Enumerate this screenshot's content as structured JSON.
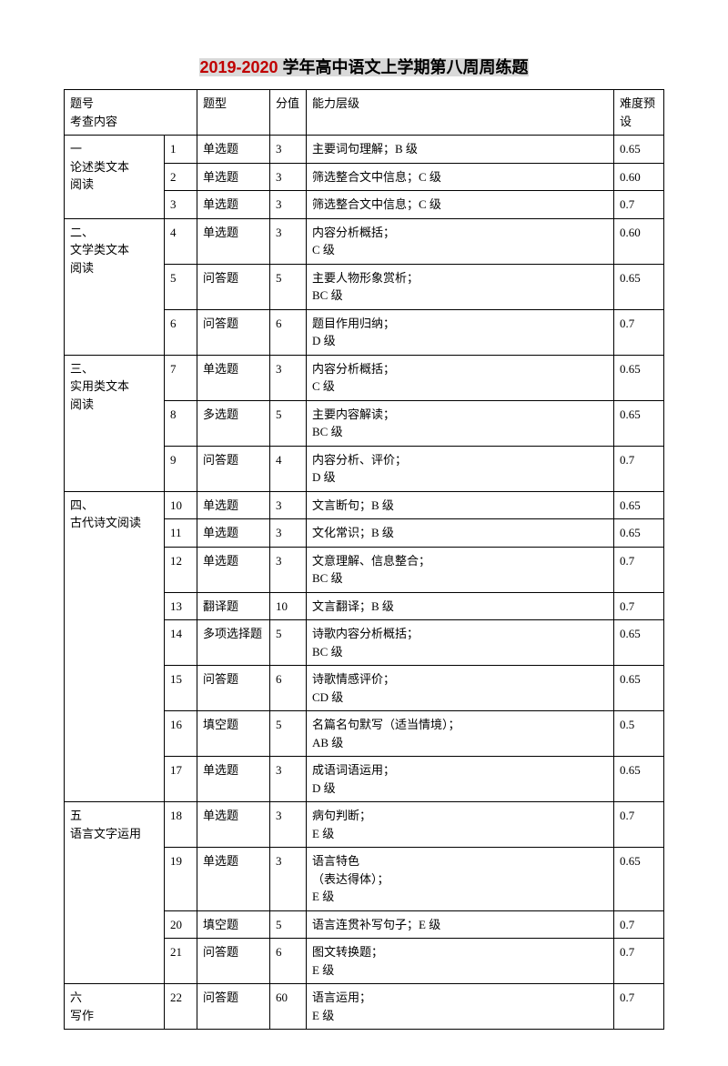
{
  "title_highlight": "2019-2020",
  "title_rest": " 学年高中语文上学期第八周周练题",
  "header": {
    "c1": "题号\n考查内容",
    "c2": "",
    "c3": "题型",
    "c4": "分值",
    "c5": "能力层级",
    "c6": "难度预\n设"
  },
  "sections": [
    {
      "label": "一\n论述类文本\n阅读",
      "rows": [
        {
          "n": "1",
          "type": "单选题",
          "score": "3",
          "ability": "主要词句理解；B 级",
          "diff": "0.65"
        },
        {
          "n": "2",
          "type": "单选题",
          "score": "3",
          "ability": "筛选整合文中信息；C 级",
          "diff": "0.60"
        },
        {
          "n": "3",
          "type": "单选题",
          "score": "3",
          "ability": "筛选整合文中信息；C 级",
          "diff": "0.7"
        }
      ]
    },
    {
      "label": "二、\n文学类文本\n阅读",
      "rows": [
        {
          "n": "4",
          "type": "单选题",
          "score": "3",
          "ability": "内容分析概括；\nC 级",
          "diff": "0.60"
        },
        {
          "n": "5",
          "type": "问答题",
          "score": "5",
          "ability": "主要人物形象赏析；\nBC 级",
          "diff": "0.65"
        },
        {
          "n": "6",
          "type": "问答题",
          "score": "6",
          "ability": "题目作用归纳；\nD 级",
          "diff": "0.7"
        }
      ]
    },
    {
      "label": "三、\n实用类文本\n阅读",
      "rows": [
        {
          "n": "7",
          "type": "单选题",
          "score": "3",
          "ability": "内容分析概括；\nC 级",
          "diff": "0.65"
        },
        {
          "n": "8",
          "type": "多选题",
          "score": "5",
          "ability": "主要内容解读；\nBC 级",
          "diff": "0.65"
        },
        {
          "n": "9",
          "type": "问答题",
          "score": "4",
          "ability": "内容分析、评价；\nD 级",
          "diff": "0.7"
        }
      ]
    },
    {
      "label": "四、\n古代诗文阅读",
      "rows": [
        {
          "n": "10",
          "type": "单选题",
          "score": "3",
          "ability": "文言断句；B 级",
          "diff": "0.65"
        },
        {
          "n": "11",
          "type": "单选题",
          "score": "3",
          "ability": "文化常识；B 级",
          "diff": "0.65"
        },
        {
          "n": "12",
          "type": "单选题",
          "score": "3",
          "ability": "文意理解、信息整合；\nBC 级",
          "diff": "0.7"
        },
        {
          "n": "13",
          "type": "翻译题",
          "score": "10",
          "ability": "文言翻译；B 级",
          "diff": "0.7"
        },
        {
          "n": "14",
          "type": "多项选择题",
          "score": "5",
          "ability": "诗歌内容分析概括；\nBC 级",
          "diff": "0.65"
        },
        {
          "n": "15",
          "type": "问答题",
          "score": "6",
          "ability": "诗歌情感评价；\nCD 级",
          "diff": "0.65"
        },
        {
          "n": "16",
          "type": "填空题",
          "score": "5",
          "ability": "名篇名句默写（适当情境）；\nAB 级",
          "diff": "0.5"
        },
        {
          "n": "17",
          "type": "单选题",
          "score": "3",
          "ability": "成语词语运用；\nD 级",
          "diff": "0.65"
        }
      ]
    },
    {
      "label": "五\n语言文字运用",
      "rows": [
        {
          "n": "18",
          "type": "单选题",
          "score": "3",
          "ability": "病句判断；\nE 级",
          "diff": "0.7"
        },
        {
          "n": "19",
          "type": "单选题",
          "score": "3",
          "ability": "语言特色\n（表达得体）；\nE 级",
          "diff": "0.65"
        },
        {
          "n": "20",
          "type": "填空题",
          "score": "5",
          "ability": "语言连贯补写句子；E 级",
          "diff": "0.7"
        },
        {
          "n": "21",
          "type": "问答题",
          "score": "6",
          "ability": "图文转换题；\nE 级",
          "diff": "0.7"
        }
      ]
    },
    {
      "label": "六\n写作",
      "rows": [
        {
          "n": "22",
          "type": "问答题",
          "score": "60",
          "ability": "语言运用；\nE 级",
          "diff": "0.7"
        }
      ]
    }
  ]
}
